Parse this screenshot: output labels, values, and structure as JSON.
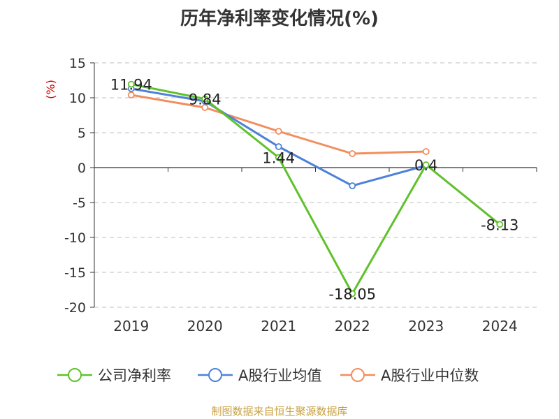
{
  "chart_data": {
    "type": "line",
    "title": "历年净利率变化情况(%)",
    "ylabel": "(%)",
    "categories": [
      "2019",
      "2020",
      "2021",
      "2022",
      "2023",
      "2024"
    ],
    "ylim": [
      -20,
      15
    ],
    "yticks": [
      15,
      10,
      5,
      0,
      -5,
      -10,
      -15,
      -20
    ],
    "grid": true,
    "legend_position": "bottom",
    "series": [
      {
        "name": "公司净利率",
        "color": "#5fc12b",
        "values": [
          11.94,
          9.84,
          1.44,
          -18.05,
          0.4,
          -8.13
        ],
        "labels": [
          "11.94",
          "9.84",
          "1.44",
          "-18.05",
          "0.4",
          "-8.13"
        ]
      },
      {
        "name": "A股行业均值",
        "color": "#4d82d8",
        "values": [
          11.3,
          9.5,
          3.0,
          -2.6,
          0.3,
          null
        ]
      },
      {
        "name": "A股行业中位数",
        "color": "#f28d5e",
        "values": [
          10.4,
          8.6,
          5.2,
          2.0,
          2.3,
          null
        ]
      }
    ]
  },
  "source_text": "制图数据来自恒生聚源数据库"
}
